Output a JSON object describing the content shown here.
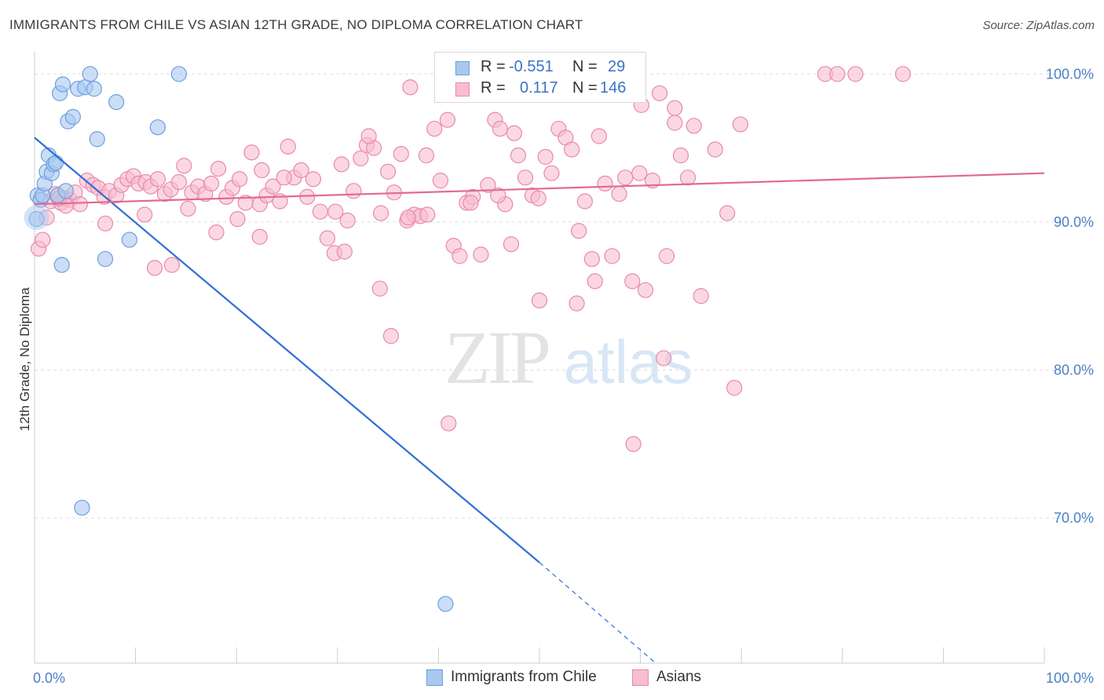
{
  "header": {
    "title": "IMMIGRANTS FROM CHILE VS ASIAN 12TH GRADE, NO DIPLOMA CORRELATION CHART",
    "source": "Source: ZipAtlas.com"
  },
  "watermark": {
    "zip": "ZIP",
    "atlas": "atlas"
  },
  "legend_top": {
    "rows": [
      {
        "r_label": "R =",
        "r_value": "-0.551",
        "n_label": "N =",
        "n_value": "29",
        "color": "#a9c8f0",
        "border": "#6d9fe0"
      },
      {
        "r_label": "R =",
        "r_value": "0.117",
        "n_label": "N =",
        "n_value": "146",
        "color": "#f8bdd0",
        "border": "#e88aa8"
      }
    ]
  },
  "legend_bottom": {
    "items": [
      {
        "label": "Immigrants from Chile",
        "color": "#a9c8f0",
        "border": "#6d9fe0"
      },
      {
        "label": "Asians",
        "color": "#f8bdd0",
        "border": "#e88aa8"
      }
    ]
  },
  "chart_data": {
    "type": "scatter",
    "title": "IMMIGRANTS FROM CHILE VS ASIAN 12TH GRADE, NO DIPLOMA CORRELATION CHART",
    "xlabel": "",
    "ylabel": "12th Grade, No Diploma",
    "xlim": [
      0,
      100
    ],
    "ylim": [
      60.2,
      101.5
    ],
    "x_tick_labels": [
      {
        "value": 0,
        "label": "0.0%"
      },
      {
        "value": 100,
        "label": "100.0%"
      }
    ],
    "x_minor_ticks": [
      0,
      10,
      20,
      30,
      40,
      50,
      60,
      70,
      80,
      90,
      100
    ],
    "y_ticks": [
      {
        "value": 100,
        "label": "100.0%"
      },
      {
        "value": 90,
        "label": "90.0%"
      },
      {
        "value": 80,
        "label": "80.0%"
      },
      {
        "value": 70,
        "label": "70.0%"
      }
    ],
    "grid": true,
    "legend_position": "top-center",
    "series": [
      {
        "name": "Immigrants from Chile",
        "color": "#6d9fe0",
        "fill": "#a9c8f0",
        "line_color": "#2f6fd6",
        "r": -0.551,
        "n": 29,
        "trend": {
          "x0": 0,
          "y0": 95.7,
          "x1": 50,
          "y1": 67.0,
          "dash_to_x": 61.5,
          "dash_to_y": 60.2
        },
        "points": [
          [
            0.3,
            91.8
          ],
          [
            0.6,
            91.5
          ],
          [
            0.8,
            91.8
          ],
          [
            1.0,
            92.6
          ],
          [
            1.2,
            93.4
          ],
          [
            1.4,
            94.5
          ],
          [
            1.7,
            93.3
          ],
          [
            1.9,
            93.9
          ],
          [
            2.1,
            94.0
          ],
          [
            2.3,
            91.8
          ],
          [
            2.5,
            98.7
          ],
          [
            2.7,
            87.1
          ],
          [
            2.8,
            99.3
          ],
          [
            3.1,
            92.1
          ],
          [
            3.3,
            96.8
          ],
          [
            3.8,
            97.1
          ],
          [
            4.3,
            99.0
          ],
          [
            5.0,
            99.1
          ],
          [
            5.5,
            100.0
          ],
          [
            5.9,
            99.0
          ],
          [
            6.2,
            95.6
          ],
          [
            7.0,
            87.5
          ],
          [
            8.1,
            98.1
          ],
          [
            9.4,
            88.8
          ],
          [
            12.2,
            96.4
          ],
          [
            14.3,
            100.0
          ],
          [
            4.7,
            70.7
          ],
          [
            40.7,
            64.2
          ],
          [
            0.2,
            90.2
          ]
        ]
      },
      {
        "name": "Asians",
        "color": "#e88aa8",
        "fill": "#f8bdd0",
        "line_color": "#e06a93",
        "r": 0.117,
        "n": 146,
        "trend": {
          "x0": 0,
          "y0": 91.2,
          "x1": 100,
          "y1": 93.3
        },
        "points": [
          [
            0.4,
            88.2
          ],
          [
            0.8,
            88.8
          ],
          [
            1.2,
            90.3
          ],
          [
            1.6,
            91.4
          ],
          [
            2.1,
            91.9
          ],
          [
            2.6,
            91.3
          ],
          [
            3.0,
            91.6
          ],
          [
            3.5,
            91.5
          ],
          [
            4.0,
            92.0
          ],
          [
            4.5,
            91.2
          ],
          [
            5.2,
            92.8
          ],
          [
            5.8,
            92.5
          ],
          [
            6.3,
            92.3
          ],
          [
            6.9,
            91.7
          ],
          [
            7.4,
            92.1
          ],
          [
            8.1,
            91.8
          ],
          [
            8.6,
            92.5
          ],
          [
            9.2,
            92.9
          ],
          [
            9.8,
            93.1
          ],
          [
            10.3,
            92.6
          ],
          [
            11.0,
            92.7
          ],
          [
            11.5,
            92.4
          ],
          [
            12.2,
            92.9
          ],
          [
            12.9,
            91.9
          ],
          [
            13.5,
            92.2
          ],
          [
            14.3,
            92.7
          ],
          [
            14.8,
            93.8
          ],
          [
            15.6,
            92.0
          ],
          [
            16.2,
            92.4
          ],
          [
            16.9,
            91.9
          ],
          [
            17.5,
            92.6
          ],
          [
            18.2,
            93.6
          ],
          [
            19.0,
            91.7
          ],
          [
            19.6,
            92.3
          ],
          [
            20.3,
            92.9
          ],
          [
            20.9,
            91.3
          ],
          [
            21.5,
            94.7
          ],
          [
            22.3,
            91.2
          ],
          [
            23.0,
            91.8
          ],
          [
            23.6,
            92.4
          ],
          [
            24.3,
            91.4
          ],
          [
            25.1,
            95.1
          ],
          [
            25.7,
            93.0
          ],
          [
            26.4,
            93.5
          ],
          [
            27.0,
            91.7
          ],
          [
            27.6,
            92.9
          ],
          [
            28.3,
            90.7
          ],
          [
            29.0,
            88.9
          ],
          [
            29.7,
            87.9
          ],
          [
            30.4,
            93.9
          ],
          [
            31.0,
            90.1
          ],
          [
            31.6,
            92.1
          ],
          [
            32.3,
            94.3
          ],
          [
            32.9,
            95.2
          ],
          [
            33.6,
            95.0
          ],
          [
            34.3,
            90.6
          ],
          [
            35.0,
            93.4
          ],
          [
            35.6,
            92.0
          ],
          [
            36.3,
            94.6
          ],
          [
            36.9,
            90.1
          ],
          [
            37.6,
            90.5
          ],
          [
            38.2,
            90.4
          ],
          [
            38.8,
            94.5
          ],
          [
            39.6,
            96.3
          ],
          [
            40.2,
            92.8
          ],
          [
            40.9,
            96.9
          ],
          [
            41.5,
            88.4
          ],
          [
            42.1,
            87.7
          ],
          [
            42.8,
            91.3
          ],
          [
            43.4,
            91.7
          ],
          [
            44.2,
            87.8
          ],
          [
            44.9,
            92.5
          ],
          [
            45.6,
            96.9
          ],
          [
            46.1,
            96.3
          ],
          [
            46.6,
            91.2
          ],
          [
            47.2,
            88.5
          ],
          [
            47.9,
            94.5
          ],
          [
            48.6,
            93.0
          ],
          [
            49.3,
            91.8
          ],
          [
            49.9,
            91.6
          ],
          [
            50.6,
            94.4
          ],
          [
            51.2,
            93.3
          ],
          [
            51.9,
            96.3
          ],
          [
            52.6,
            95.7
          ],
          [
            53.2,
            94.9
          ],
          [
            53.9,
            89.4
          ],
          [
            54.5,
            91.4
          ],
          [
            55.2,
            87.5
          ],
          [
            55.9,
            95.8
          ],
          [
            56.5,
            92.6
          ],
          [
            57.2,
            87.7
          ],
          [
            57.9,
            91.9
          ],
          [
            58.5,
            93.0
          ],
          [
            59.2,
            86.0
          ],
          [
            59.9,
            93.3
          ],
          [
            60.5,
            85.4
          ],
          [
            61.2,
            92.8
          ],
          [
            61.9,
            98.7
          ],
          [
            62.6,
            87.7
          ],
          [
            63.4,
            96.7
          ],
          [
            64.0,
            94.5
          ],
          [
            64.7,
            93.0
          ],
          [
            65.3,
            96.5
          ],
          [
            66.0,
            85.0
          ],
          [
            67.4,
            94.9
          ],
          [
            68.6,
            90.6
          ],
          [
            69.9,
            96.6
          ],
          [
            78.3,
            100.0
          ],
          [
            79.5,
            100.0
          ],
          [
            81.3,
            100.0
          ],
          [
            86.0,
            100.0
          ],
          [
            37.2,
            99.1
          ],
          [
            41.7,
            99.1
          ],
          [
            56.2,
            98.7
          ],
          [
            60.1,
            97.9
          ],
          [
            62.3,
            80.8
          ],
          [
            69.3,
            78.8
          ],
          [
            63.4,
            97.7
          ],
          [
            13.6,
            87.1
          ],
          [
            11.9,
            86.9
          ],
          [
            7.0,
            89.9
          ],
          [
            18.0,
            89.3
          ],
          [
            22.3,
            89.0
          ],
          [
            34.2,
            85.5
          ],
          [
            35.3,
            82.3
          ],
          [
            41.0,
            76.4
          ],
          [
            50.0,
            84.7
          ],
          [
            53.7,
            84.5
          ],
          [
            59.3,
            75.0
          ],
          [
            55.5,
            86.0
          ],
          [
            47.5,
            96.0
          ],
          [
            45.9,
            91.8
          ],
          [
            43.2,
            91.3
          ],
          [
            38.9,
            90.5
          ],
          [
            37.0,
            90.3
          ],
          [
            30.7,
            88.0
          ],
          [
            29.8,
            90.7
          ],
          [
            20.1,
            90.2
          ],
          [
            15.2,
            90.9
          ],
          [
            10.9,
            90.5
          ],
          [
            3.1,
            91.1
          ],
          [
            2.4,
            91.6
          ],
          [
            22.5,
            93.5
          ],
          [
            24.7,
            93.0
          ],
          [
            33.1,
            95.8
          ]
        ]
      }
    ]
  }
}
